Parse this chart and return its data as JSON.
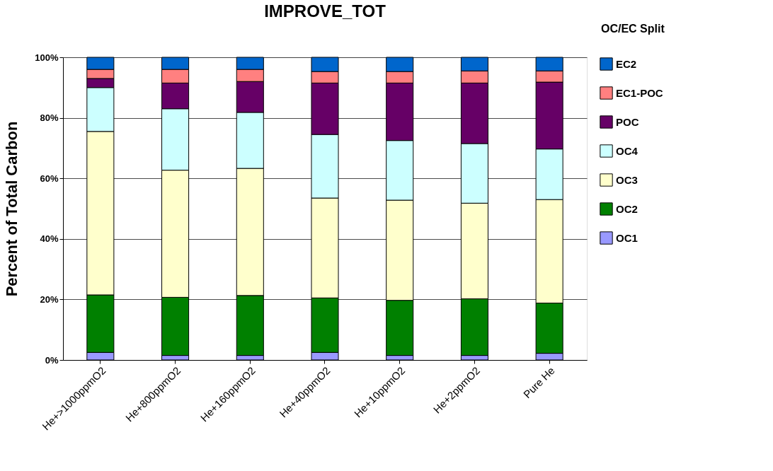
{
  "chart_data": {
    "type": "bar",
    "stacked": true,
    "title": "IMPROVE_TOT",
    "ylabel": "Percent of Total Carbon",
    "categories": [
      "He+>1000ppmO2",
      "He+800ppmO2",
      "He+160ppmO2",
      "He+40ppmO2",
      "He+10ppmO2",
      "He+2ppmO2",
      "Pure He"
    ],
    "series": [
      {
        "name": "OC1",
        "color": "#9999ff",
        "values": [
          2.5,
          1.5,
          1.5,
          2.5,
          1.5,
          1.5,
          2.2
        ]
      },
      {
        "name": "OC2",
        "color": "#008000",
        "values": [
          19,
          19.2,
          19.8,
          18,
          18.2,
          18.7,
          16.6
        ]
      },
      {
        "name": "OC3",
        "color": "#ffffcc",
        "values": [
          54,
          42,
          42,
          33,
          33.1,
          31.6,
          34.2
        ]
      },
      {
        "name": "OC4",
        "color": "#ccffff",
        "values": [
          14.5,
          20.3,
          18.5,
          21,
          19.7,
          19.7,
          16.7
        ]
      },
      {
        "name": "POC",
        "color": "#660066",
        "values": [
          3,
          8.5,
          10.2,
          17,
          19,
          20,
          22.1
        ]
      },
      {
        "name": "EC1-POC",
        "color": "#ff8080",
        "values": [
          3,
          4.5,
          4,
          3.8,
          3.8,
          4,
          3.7
        ]
      },
      {
        "name": "EC2",
        "color": "#0066cc",
        "values": [
          4,
          4,
          4,
          4.7,
          4.7,
          4.5,
          4.5
        ]
      }
    ],
    "ylim": [
      0,
      100
    ],
    "yticks": [
      {
        "value": 0,
        "label": "0%"
      },
      {
        "value": 20,
        "label": "20%"
      },
      {
        "value": 40,
        "label": "40%"
      },
      {
        "value": 60,
        "label": "60%"
      },
      {
        "value": 80,
        "label": "80%"
      },
      {
        "value": 100,
        "label": "100%"
      }
    ],
    "grid": "y",
    "legend": "right",
    "annotations": [
      "OC/EC Split"
    ]
  }
}
